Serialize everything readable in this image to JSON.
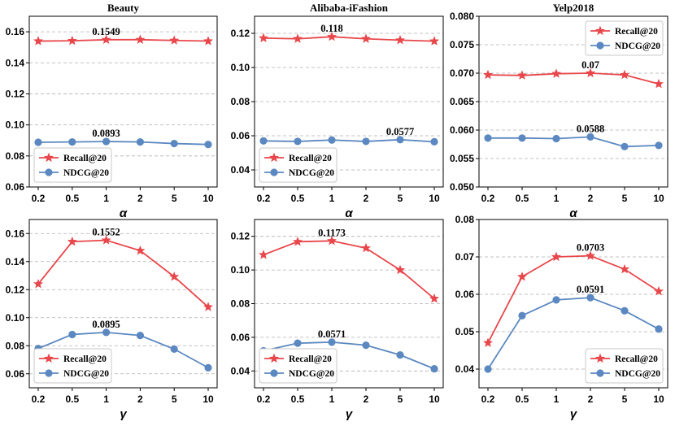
{
  "colors": {
    "recall": "#e8474b",
    "ndcg": "#5b88c0"
  },
  "chart_data": [
    {
      "type": "line",
      "title": "Beauty",
      "xlabel": "α",
      "ylabel": "",
      "categories": [
        "0.2",
        "0.5",
        "1",
        "2",
        "5",
        "10"
      ],
      "ylim": [
        0.06,
        0.17
      ],
      "yticks": [
        0.06,
        0.08,
        0.1,
        0.12,
        0.14,
        0.16
      ],
      "ytick_labels": [
        "0.06",
        "0.08",
        "0.10",
        "0.12",
        "0.14",
        "0.16"
      ],
      "series": [
        {
          "name": "Recall@20",
          "values": [
            0.154,
            0.1542,
            0.1549,
            0.1549,
            0.1544,
            0.154
          ]
        },
        {
          "name": "NDCG@20",
          "values": [
            0.0888,
            0.089,
            0.0893,
            0.089,
            0.088,
            0.0874
          ]
        }
      ],
      "annotations": [
        {
          "text": "0.1549",
          "series": 0,
          "index": 2
        },
        {
          "text": "0.0893",
          "series": 1,
          "index": 2
        }
      ],
      "legend": "lower-left"
    },
    {
      "type": "line",
      "title": "Alibaba-iFashion",
      "xlabel": "α",
      "ylabel": "",
      "categories": [
        "0.2",
        "0.5",
        "1",
        "2",
        "5",
        "10"
      ],
      "ylim": [
        0.03,
        0.13
      ],
      "yticks": [
        0.04,
        0.06,
        0.08,
        0.1,
        0.12
      ],
      "ytick_labels": [
        "0.04",
        "0.06",
        "0.08",
        "0.10",
        "0.12"
      ],
      "series": [
        {
          "name": "Recall@20",
          "values": [
            0.1172,
            0.1168,
            0.118,
            0.1168,
            0.116,
            0.1154
          ]
        },
        {
          "name": "NDCG@20",
          "values": [
            0.057,
            0.0567,
            0.0575,
            0.0567,
            0.0577,
            0.0565
          ]
        }
      ],
      "annotations": [
        {
          "text": "0.118",
          "series": 0,
          "index": 2
        },
        {
          "text": "0.0577",
          "series": 1,
          "index": 4
        }
      ],
      "legend": "lower-left"
    },
    {
      "type": "line",
      "title": "Yelp2018",
      "xlabel": "α",
      "ylabel": "",
      "categories": [
        "0.2",
        "0.5",
        "1",
        "2",
        "5",
        "10"
      ],
      "ylim": [
        0.05,
        0.08
      ],
      "yticks": [
        0.05,
        0.055,
        0.06,
        0.065,
        0.07,
        0.075,
        0.08
      ],
      "ytick_labels": [
        "0.050",
        "0.055",
        "0.060",
        "0.065",
        "0.070",
        "0.075",
        "0.080"
      ],
      "series": [
        {
          "name": "Recall@20",
          "values": [
            0.0697,
            0.0696,
            0.0699,
            0.07,
            0.0697,
            0.0681
          ]
        },
        {
          "name": "NDCG@20",
          "values": [
            0.0586,
            0.0586,
            0.0585,
            0.0588,
            0.0571,
            0.0573
          ]
        }
      ],
      "annotations": [
        {
          "text": "0.07",
          "series": 0,
          "index": 3
        },
        {
          "text": "0.0588",
          "series": 1,
          "index": 3
        }
      ],
      "legend": "top-right"
    },
    {
      "type": "line",
      "title": "",
      "xlabel": "γ",
      "ylabel": "",
      "categories": [
        "0.2",
        "0.5",
        "1",
        "2",
        "5",
        "10"
      ],
      "ylim": [
        0.05,
        0.17
      ],
      "yticks": [
        0.06,
        0.08,
        0.1,
        0.12,
        0.14,
        0.16
      ],
      "ytick_labels": [
        "0.06",
        "0.08",
        "0.10",
        "0.12",
        "0.14",
        "0.16"
      ],
      "series": [
        {
          "name": "Recall@20",
          "values": [
            0.124,
            0.1542,
            0.1552,
            0.1478,
            0.1292,
            0.1076
          ]
        },
        {
          "name": "NDCG@20",
          "values": [
            0.078,
            0.088,
            0.0895,
            0.0873,
            0.0776,
            0.0643
          ]
        }
      ],
      "annotations": [
        {
          "text": "0.1552",
          "series": 0,
          "index": 2
        },
        {
          "text": "0.0895",
          "series": 1,
          "index": 2
        }
      ],
      "legend": "lower-left"
    },
    {
      "type": "line",
      "title": "",
      "xlabel": "γ",
      "ylabel": "",
      "categories": [
        "0.2",
        "0.5",
        "1",
        "2",
        "5",
        "10"
      ],
      "ylim": [
        0.03,
        0.13
      ],
      "yticks": [
        0.04,
        0.06,
        0.08,
        0.1,
        0.12
      ],
      "ytick_labels": [
        "0.04",
        "0.06",
        "0.08",
        "0.10",
        "0.12"
      ],
      "series": [
        {
          "name": "Recall@20",
          "values": [
            0.109,
            0.1168,
            0.1173,
            0.113,
            0.1,
            0.083
          ]
        },
        {
          "name": "NDCG@20",
          "values": [
            0.052,
            0.0565,
            0.0571,
            0.0553,
            0.0495,
            0.0413
          ]
        }
      ],
      "annotations": [
        {
          "text": "0.1173",
          "series": 0,
          "index": 2
        },
        {
          "text": "0.0571",
          "series": 1,
          "index": 2
        }
      ],
      "legend": "lower-left"
    },
    {
      "type": "line",
      "title": "",
      "xlabel": "γ",
      "ylabel": "",
      "categories": [
        "0.2",
        "0.5",
        "1",
        "2",
        "5",
        "10"
      ],
      "ylim": [
        0.035,
        0.08
      ],
      "yticks": [
        0.04,
        0.05,
        0.06,
        0.07,
        0.08
      ],
      "ytick_labels": [
        "0.04",
        "0.05",
        "0.06",
        "0.07",
        "0.08"
      ],
      "series": [
        {
          "name": "Recall@20",
          "values": [
            0.047,
            0.0647,
            0.07,
            0.0703,
            0.0667,
            0.0608
          ]
        },
        {
          "name": "NDCG@20",
          "values": [
            0.04,
            0.0543,
            0.0585,
            0.0591,
            0.0556,
            0.0507
          ]
        }
      ],
      "annotations": [
        {
          "text": "0.0703",
          "series": 0,
          "index": 3
        },
        {
          "text": "0.0591",
          "series": 1,
          "index": 3
        }
      ],
      "legend": "lower-right"
    }
  ]
}
